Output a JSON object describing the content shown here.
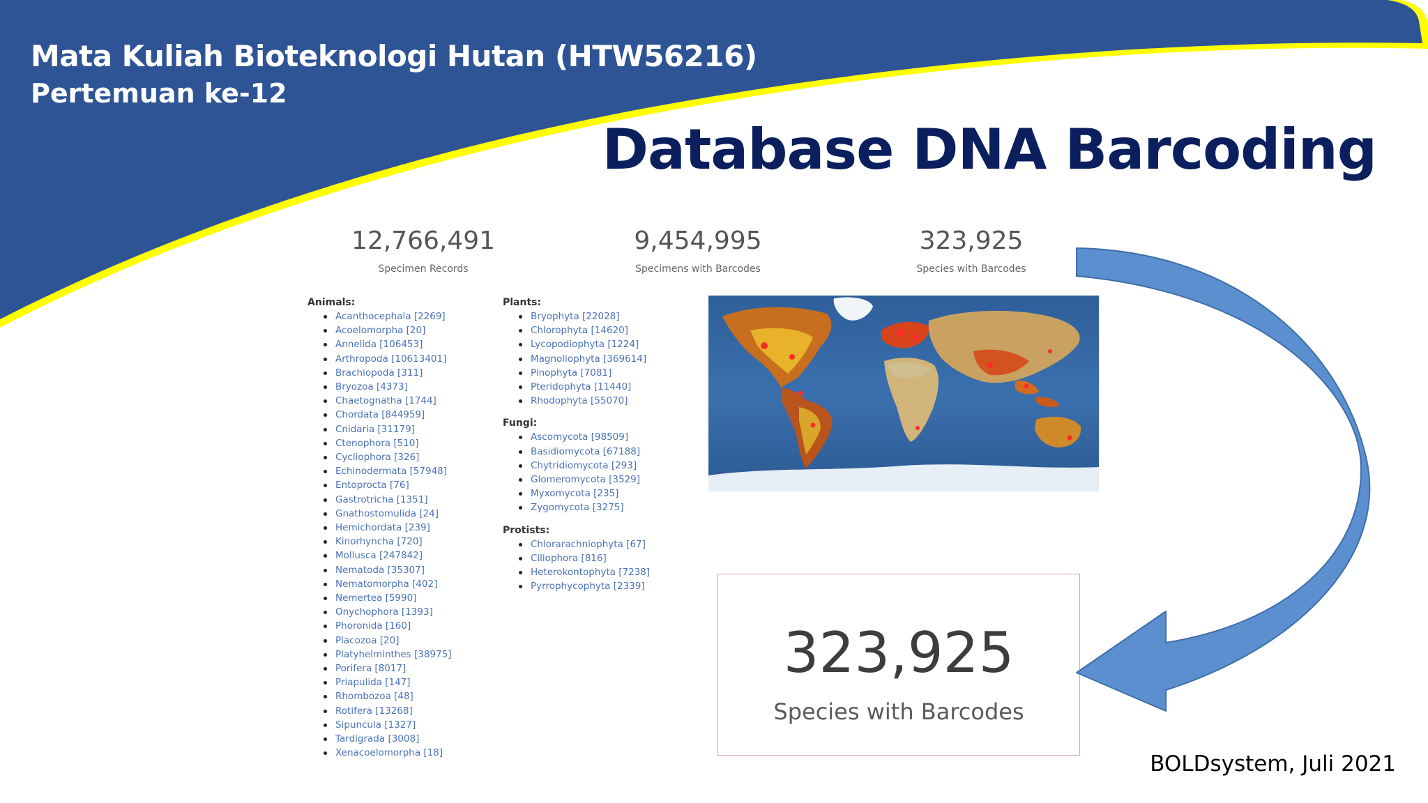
{
  "header": {
    "course_title": "Mata Kuliah Bioteknologi Hutan (HTW56216)",
    "meeting": "Pertemuan ke-12",
    "slide_title": "Database DNA Barcoding"
  },
  "colors": {
    "banner_blue": "#2e5496",
    "banner_yellow": "#ffff00",
    "title_navy": "#0b1f5e",
    "link_blue": "#4a72b8",
    "arrow_blue": "#5b8fd0"
  },
  "stats": [
    {
      "value": "12,766,491",
      "label": "Specimen Records"
    },
    {
      "value": "9,454,995",
      "label": "Specimens with Barcodes"
    },
    {
      "value": "323,925",
      "label": "Species with Barcodes"
    }
  ],
  "taxonomy": {
    "animals": {
      "title": "Animals:",
      "items": [
        "Acanthocephala [2269]",
        "Acoelomorpha [20]",
        "Annelida [106453]",
        "Arthropoda [10613401]",
        "Brachiopoda [311]",
        "Bryozoa [4373]",
        "Chaetognatha [1744]",
        "Chordata [844959]",
        "Cnidaria [31179]",
        "Ctenophora [510]",
        "Cycliophora [326]",
        "Echinodermata [57948]",
        "Entoprocta [76]",
        "Gastrotricha [1351]",
        "Gnathostomulida [24]",
        "Hemichordata [239]",
        "Kinorhyncha [720]",
        "Mollusca [247842]",
        "Nematoda [35307]",
        "Nematomorpha [402]",
        "Nemertea [5990]",
        "Onychophora [1393]",
        "Phoronida [160]",
        "Placozoa [20]",
        "Platyhelminthes [38975]",
        "Porifera [8017]",
        "Priapulida [147]",
        "Rhombozoa [48]",
        "Rotifera [13268]",
        "Sipuncula [1327]",
        "Tardigrada [3008]",
        "Xenacoelomorpha [18]"
      ]
    },
    "plants": {
      "title": "Plants:",
      "items": [
        "Bryophyta [22028]",
        "Chlorophyta [14620]",
        "Lycopodiophyta [1224]",
        "Magnoliophyta [369614]",
        "Pinophyta [7081]",
        "Pteridophyta [11440]",
        "Rhodophyta [55070]"
      ]
    },
    "fungi": {
      "title": "Fungi:",
      "items": [
        "Ascomycota [98509]",
        "Basidiomycota [67188]",
        "Chytridiomycota [293]",
        "Glomeromycota [3529]",
        "Myxomycota [235]",
        "Zygomycota [3275]"
      ]
    },
    "protists": {
      "title": "Protists:",
      "items": [
        "Chlorarachniophyta [67]",
        "Ciliophora [816]",
        "Heterokontophyta [7238]",
        "Pyrrophycophyta [2339]"
      ]
    }
  },
  "highlight": {
    "value": "323,925",
    "label": "Species with Barcodes"
  },
  "source": "BOLDsystem, Juli 2021"
}
